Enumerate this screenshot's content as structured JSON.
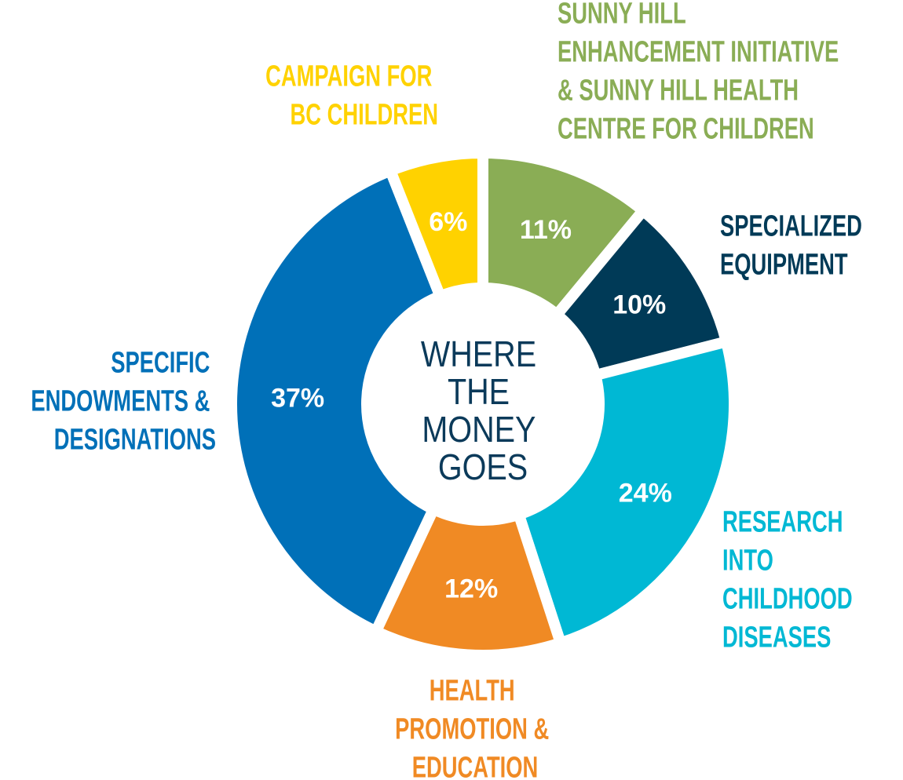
{
  "chart_data": {
    "type": "donut",
    "title": "WHERE THE MONEY GOES",
    "categories": [
      "SUNNY HILL ENHANCEMENT INITIATIVE & SUNNY HILL HEALTH CENTRE FOR CHILDREN",
      "SPECIALIZED EQUIPMENT",
      "RESEARCH INTO CHILDHOOD DISEASES",
      "HEALTH PROMOTION & EDUCATION",
      "SPECIFIC ENDOWMENTS & DESIGNATIONS",
      "CAMPAIGN FOR BC CHILDREN"
    ],
    "values": [
      11,
      10,
      24,
      12,
      37,
      6
    ],
    "value_labels": [
      "11%",
      "10%",
      "24%",
      "12%",
      "37%",
      "6%"
    ],
    "colors": [
      "#8aad55",
      "#003a57",
      "#00b8d4",
      "#f08a24",
      "#0070b8",
      "#ffd200"
    ]
  }
}
